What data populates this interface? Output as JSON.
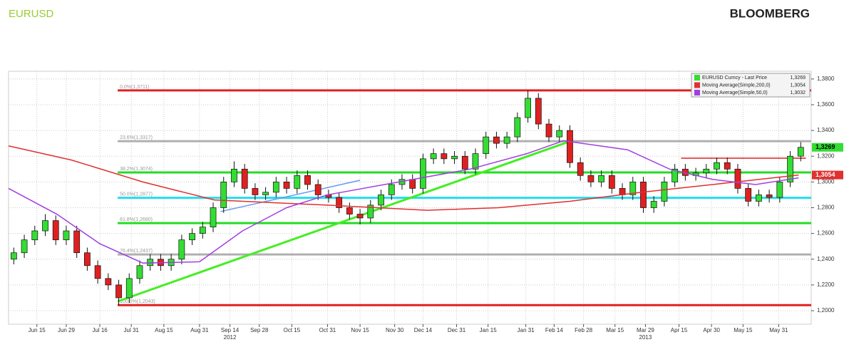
{
  "chart_data": {
    "type": "candlestick",
    "title": "EURUSD",
    "brand": "BLOOMBERG",
    "ylim": [
      1.1895,
      1.386
    ],
    "yticks": [
      {
        "value": 1.2,
        "label": "1,2000"
      },
      {
        "value": 1.22,
        "label": "1,2200"
      },
      {
        "value": 1.24,
        "label": "1,2400"
      },
      {
        "value": 1.26,
        "label": "1,2600"
      },
      {
        "value": 1.28,
        "label": "1,2800"
      },
      {
        "value": 1.3,
        "label": "1,3000"
      },
      {
        "value": 1.32,
        "label": "1,3200"
      },
      {
        "value": 1.34,
        "label": "1,3400"
      },
      {
        "value": 1.36,
        "label": "1,3600"
      },
      {
        "value": 1.38,
        "label": "1,3800"
      }
    ],
    "xlim": [
      -0.5,
      76
    ],
    "xticks": [
      {
        "value": 2.2,
        "label": "Jun 15"
      },
      {
        "value": 5.0,
        "label": "Jun 29"
      },
      {
        "value": 8.2,
        "label": "Jul 16"
      },
      {
        "value": 11.2,
        "label": "Jul 31"
      },
      {
        "value": 14.3,
        "label": "Aug 15"
      },
      {
        "value": 17.7,
        "label": "Aug 31"
      },
      {
        "value": 20.6,
        "label": "Sep 14"
      },
      {
        "value": 23.4,
        "label": "Sep 28"
      },
      {
        "value": 26.5,
        "label": "Oct 15"
      },
      {
        "value": 29.9,
        "label": "Oct 31"
      },
      {
        "value": 33.0,
        "label": "Nov 15"
      },
      {
        "value": 36.3,
        "label": "Nov 30"
      },
      {
        "value": 39.0,
        "label": "Dec 14"
      },
      {
        "value": 42.2,
        "label": "Dec 31"
      },
      {
        "value": 45.2,
        "label": "Jan 15"
      },
      {
        "value": 48.8,
        "label": "Jan 31"
      },
      {
        "value": 51.5,
        "label": "Feb 14"
      },
      {
        "value": 54.3,
        "label": "Feb 28"
      },
      {
        "value": 57.3,
        "label": "Mar 15"
      },
      {
        "value": 60.2,
        "label": "Mar 29"
      },
      {
        "value": 63.4,
        "label": "Apr 15"
      },
      {
        "value": 66.5,
        "label": "Apr 30"
      },
      {
        "value": 69.5,
        "label": "May 15"
      },
      {
        "value": 72.9,
        "label": "May 31"
      }
    ],
    "year_labels": [
      {
        "value": 20.6,
        "label": "2012"
      },
      {
        "value": 60.2,
        "label": "2013"
      }
    ],
    "grid": true,
    "up_color": "#33dd33",
    "down_color": "#e02020",
    "ohlc": [
      [
        1.24,
        1.249,
        1.236,
        1.245
      ],
      [
        1.245,
        1.259,
        1.241,
        1.255
      ],
      [
        1.255,
        1.266,
        1.251,
        1.262
      ],
      [
        1.262,
        1.275,
        1.258,
        1.27
      ],
      [
        1.27,
        1.274,
        1.251,
        1.255
      ],
      [
        1.255,
        1.266,
        1.251,
        1.262
      ],
      [
        1.262,
        1.266,
        1.241,
        1.245
      ],
      [
        1.245,
        1.249,
        1.231,
        1.235
      ],
      [
        1.235,
        1.239,
        1.221,
        1.225
      ],
      [
        1.225,
        1.229,
        1.216,
        1.22
      ],
      [
        1.22,
        1.224,
        1.2043,
        1.21
      ],
      [
        1.21,
        1.229,
        1.206,
        1.225
      ],
      [
        1.225,
        1.239,
        1.221,
        1.235
      ],
      [
        1.235,
        1.244,
        1.231,
        1.24
      ],
      [
        1.24,
        1.244,
        1.231,
        1.235
      ],
      [
        1.235,
        1.244,
        1.231,
        1.24
      ],
      [
        1.24,
        1.259,
        1.236,
        1.255
      ],
      [
        1.255,
        1.264,
        1.251,
        1.26
      ],
      [
        1.26,
        1.269,
        1.256,
        1.265
      ],
      [
        1.265,
        1.284,
        1.261,
        1.28
      ],
      [
        1.28,
        1.304,
        1.276,
        1.3
      ],
      [
        1.3,
        1.316,
        1.296,
        1.31
      ],
      [
        1.31,
        1.314,
        1.291,
        1.295
      ],
      [
        1.295,
        1.299,
        1.286,
        1.29
      ],
      [
        1.29,
        1.296,
        1.286,
        1.292
      ],
      [
        1.292,
        1.304,
        1.288,
        1.3
      ],
      [
        1.3,
        1.304,
        1.291,
        1.295
      ],
      [
        1.295,
        1.309,
        1.291,
        1.305
      ],
      [
        1.305,
        1.309,
        1.294,
        1.298
      ],
      [
        1.298,
        1.302,
        1.286,
        1.29
      ],
      [
        1.29,
        1.294,
        1.284,
        1.288
      ],
      [
        1.288,
        1.292,
        1.276,
        1.28
      ],
      [
        1.28,
        1.284,
        1.271,
        1.275
      ],
      [
        1.275,
        1.279,
        1.267,
        1.272
      ],
      [
        1.272,
        1.286,
        1.268,
        1.282
      ],
      [
        1.282,
        1.294,
        1.278,
        1.29
      ],
      [
        1.29,
        1.302,
        1.286,
        1.298
      ],
      [
        1.298,
        1.306,
        1.294,
        1.302
      ],
      [
        1.302,
        1.306,
        1.291,
        1.295
      ],
      [
        1.295,
        1.322,
        1.291,
        1.318
      ],
      [
        1.318,
        1.326,
        1.314,
        1.322
      ],
      [
        1.322,
        1.326,
        1.314,
        1.318
      ],
      [
        1.318,
        1.324,
        1.314,
        1.32
      ],
      [
        1.32,
        1.324,
        1.306,
        1.31
      ],
      [
        1.31,
        1.326,
        1.306,
        1.322
      ],
      [
        1.322,
        1.339,
        1.318,
        1.335
      ],
      [
        1.335,
        1.339,
        1.326,
        1.33
      ],
      [
        1.33,
        1.339,
        1.326,
        1.335
      ],
      [
        1.335,
        1.354,
        1.331,
        1.35
      ],
      [
        1.35,
        1.3711,
        1.346,
        1.365
      ],
      [
        1.365,
        1.369,
        1.341,
        1.345
      ],
      [
        1.345,
        1.349,
        1.331,
        1.335
      ],
      [
        1.335,
        1.344,
        1.331,
        1.34
      ],
      [
        1.34,
        1.344,
        1.311,
        1.315
      ],
      [
        1.315,
        1.319,
        1.301,
        1.305
      ],
      [
        1.305,
        1.309,
        1.296,
        1.3
      ],
      [
        1.3,
        1.309,
        1.296,
        1.305
      ],
      [
        1.305,
        1.309,
        1.291,
        1.295
      ],
      [
        1.295,
        1.299,
        1.286,
        1.29
      ],
      [
        1.29,
        1.304,
        1.286,
        1.3
      ],
      [
        1.3,
        1.304,
        1.276,
        1.28
      ],
      [
        1.28,
        1.289,
        1.276,
        1.285
      ],
      [
        1.285,
        1.304,
        1.281,
        1.3
      ],
      [
        1.3,
        1.314,
        1.296,
        1.31
      ],
      [
        1.31,
        1.314,
        1.301,
        1.305
      ],
      [
        1.305,
        1.311,
        1.301,
        1.307
      ],
      [
        1.307,
        1.314,
        1.303,
        1.31
      ],
      [
        1.31,
        1.319,
        1.306,
        1.315
      ],
      [
        1.315,
        1.319,
        1.306,
        1.31
      ],
      [
        1.31,
        1.314,
        1.291,
        1.295
      ],
      [
        1.295,
        1.299,
        1.281,
        1.285
      ],
      [
        1.285,
        1.294,
        1.281,
        1.29
      ],
      [
        1.29,
        1.294,
        1.284,
        1.288
      ],
      [
        1.288,
        1.304,
        1.284,
        1.3
      ],
      [
        1.3,
        1.324,
        1.296,
        1.32
      ],
      [
        1.32,
        1.331,
        1.316,
        1.3269
      ]
    ],
    "series": [
      {
        "name": "EURUSD Curncy - Last Price",
        "color": "#33dd33",
        "last_value": 1.3269,
        "last_label": "1,3269"
      },
      {
        "name": "Moving Average(Simple,200,0)",
        "color": "#e03030",
        "last_value": 1.3054,
        "last_label": "1,3054",
        "x": [
          -0.5,
          5.5,
          12.3,
          19.1,
          29.9,
          39.4,
          46.2,
          53.0,
          59.8,
          66.6,
          74.8
        ],
        "values": [
          1.328,
          1.317,
          1.3,
          1.286,
          1.282,
          1.278,
          1.28,
          1.285,
          1.292,
          1.298,
          1.3054
        ]
      },
      {
        "name": "Moving Average(Simple,50,0)",
        "color": "#a040e0",
        "last_value": 1.3032,
        "last_label": "1,3032",
        "x": [
          -0.5,
          4.1,
          8.2,
          12.3,
          17.7,
          21.8,
          26.0,
          29.9,
          36.7,
          43.5,
          48.9,
          52.4,
          58.5,
          62.5,
          66.6,
          70.7,
          74.8
        ],
        "values": [
          1.295,
          1.275,
          1.252,
          1.237,
          1.238,
          1.262,
          1.28,
          1.29,
          1.3,
          1.31,
          1.322,
          1.332,
          1.325,
          1.31,
          1.302,
          1.298,
          1.3032
        ]
      }
    ],
    "fib_levels": [
      {
        "label": "0.0%(1,3711)",
        "value": 1.3711,
        "color": "#e02020"
      },
      {
        "label": "23.6%(1,3317)",
        "value": 1.3317,
        "color": "#b0b0b0"
      },
      {
        "label": "38.2%(1,3074)",
        "value": 1.3074,
        "color": "#22dd22"
      },
      {
        "label": "50.0%(1,2877)",
        "value": 1.2877,
        "color": "#22ddee"
      },
      {
        "label": "61.8%(1,2680)",
        "value": 1.268,
        "color": "#22dd22"
      },
      {
        "label": "76.4%(1,2437)",
        "value": 1.2437,
        "color": "#b0b0b0"
      },
      {
        "label": "100.0%(1,2043)",
        "value": 1.2043,
        "color": "#e02020"
      }
    ],
    "fib_start": 9.9,
    "trendlines": [
      {
        "color": "#44ee22",
        "x": [
          9.9,
          52.7
        ],
        "values": [
          1.2072,
          1.3307
        ]
      },
      {
        "color": "#6699ee",
        "x": [
          19.7,
          33.0
        ],
        "values": [
          1.277,
          1.3013
        ]
      },
      {
        "color": "#e02020",
        "x": [
          63.6,
          75.5
        ],
        "values": [
          1.3185,
          1.3185
        ]
      }
    ]
  }
}
